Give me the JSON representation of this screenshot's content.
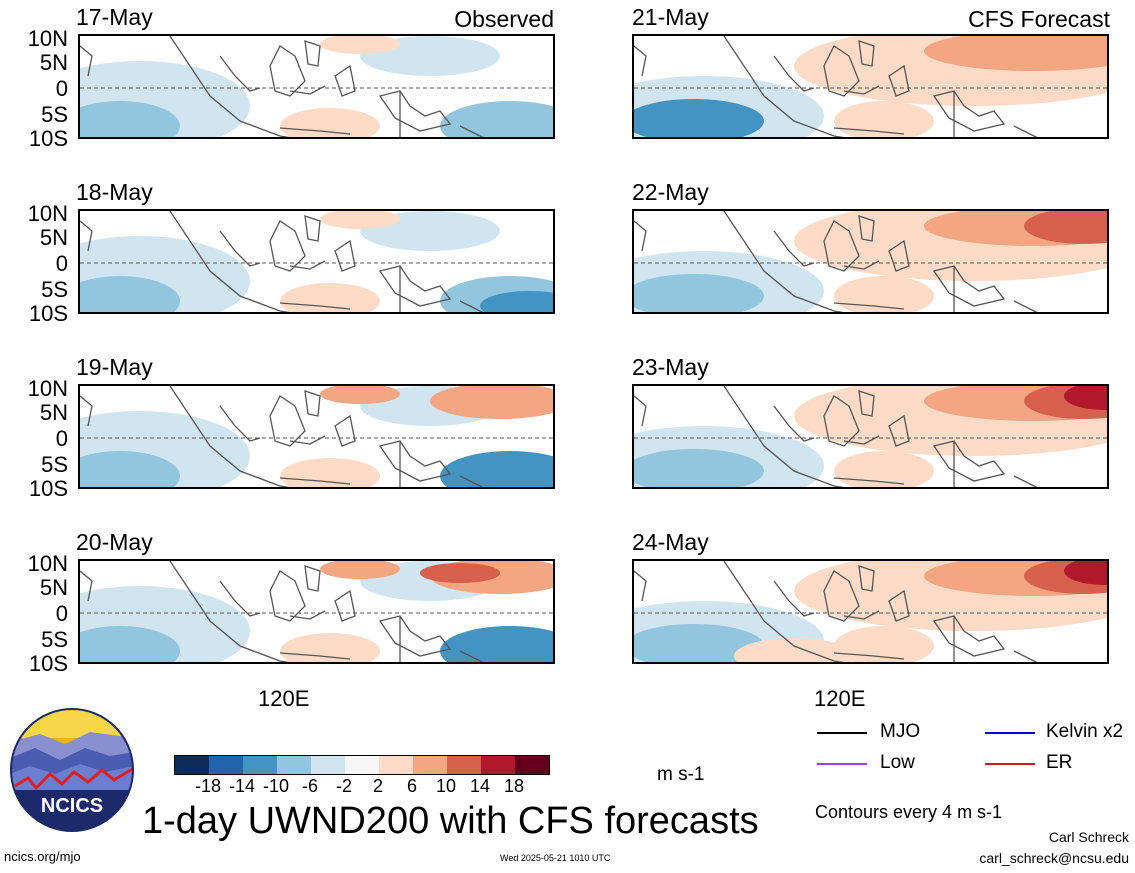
{
  "labels": {
    "observed": "Observed",
    "forecast": "CFS Forecast",
    "lat_ticks": [
      "10N",
      "5N",
      "0",
      "5S",
      "10S"
    ],
    "lon_tick": "120E"
  },
  "observed_panels": [
    {
      "date": "17-May"
    },
    {
      "date": "18-May"
    },
    {
      "date": "19-May"
    },
    {
      "date": "20-May"
    }
  ],
  "forecast_panels": [
    {
      "date": "21-May"
    },
    {
      "date": "22-May"
    },
    {
      "date": "23-May"
    },
    {
      "date": "24-May"
    }
  ],
  "colorbar": {
    "colors": [
      "#0c2d5a",
      "#2166ac",
      "#4393c3",
      "#92c5de",
      "#d1e5f0",
      "#f7f7f7",
      "#fddbc7",
      "#f4a582",
      "#d6604d",
      "#b2182b",
      "#67001f"
    ],
    "ticks": [
      "-18",
      "-14",
      "-10",
      "-6",
      "-2",
      "2",
      "6",
      "10",
      "14",
      "18"
    ],
    "units": "m s-1"
  },
  "title": "1-day UWND200 with CFS forecasts",
  "legend": [
    {
      "label": "MJO",
      "color": "#000000"
    },
    {
      "label": "Kelvin x2",
      "color": "#0000cc"
    },
    {
      "label": "Low",
      "color": "#a040e0"
    },
    {
      "label": "ER",
      "color": "#cc2020"
    }
  ],
  "contour_note": "Contours every 4 m s-1",
  "logo_text": "NCICS",
  "footer": {
    "url": "ncics.org/mjo",
    "timestamp": "Wed 2025-05-21 1010 UTC",
    "author": "Carl Schreck",
    "email": "carl_schreck@ncsu.edu"
  }
}
